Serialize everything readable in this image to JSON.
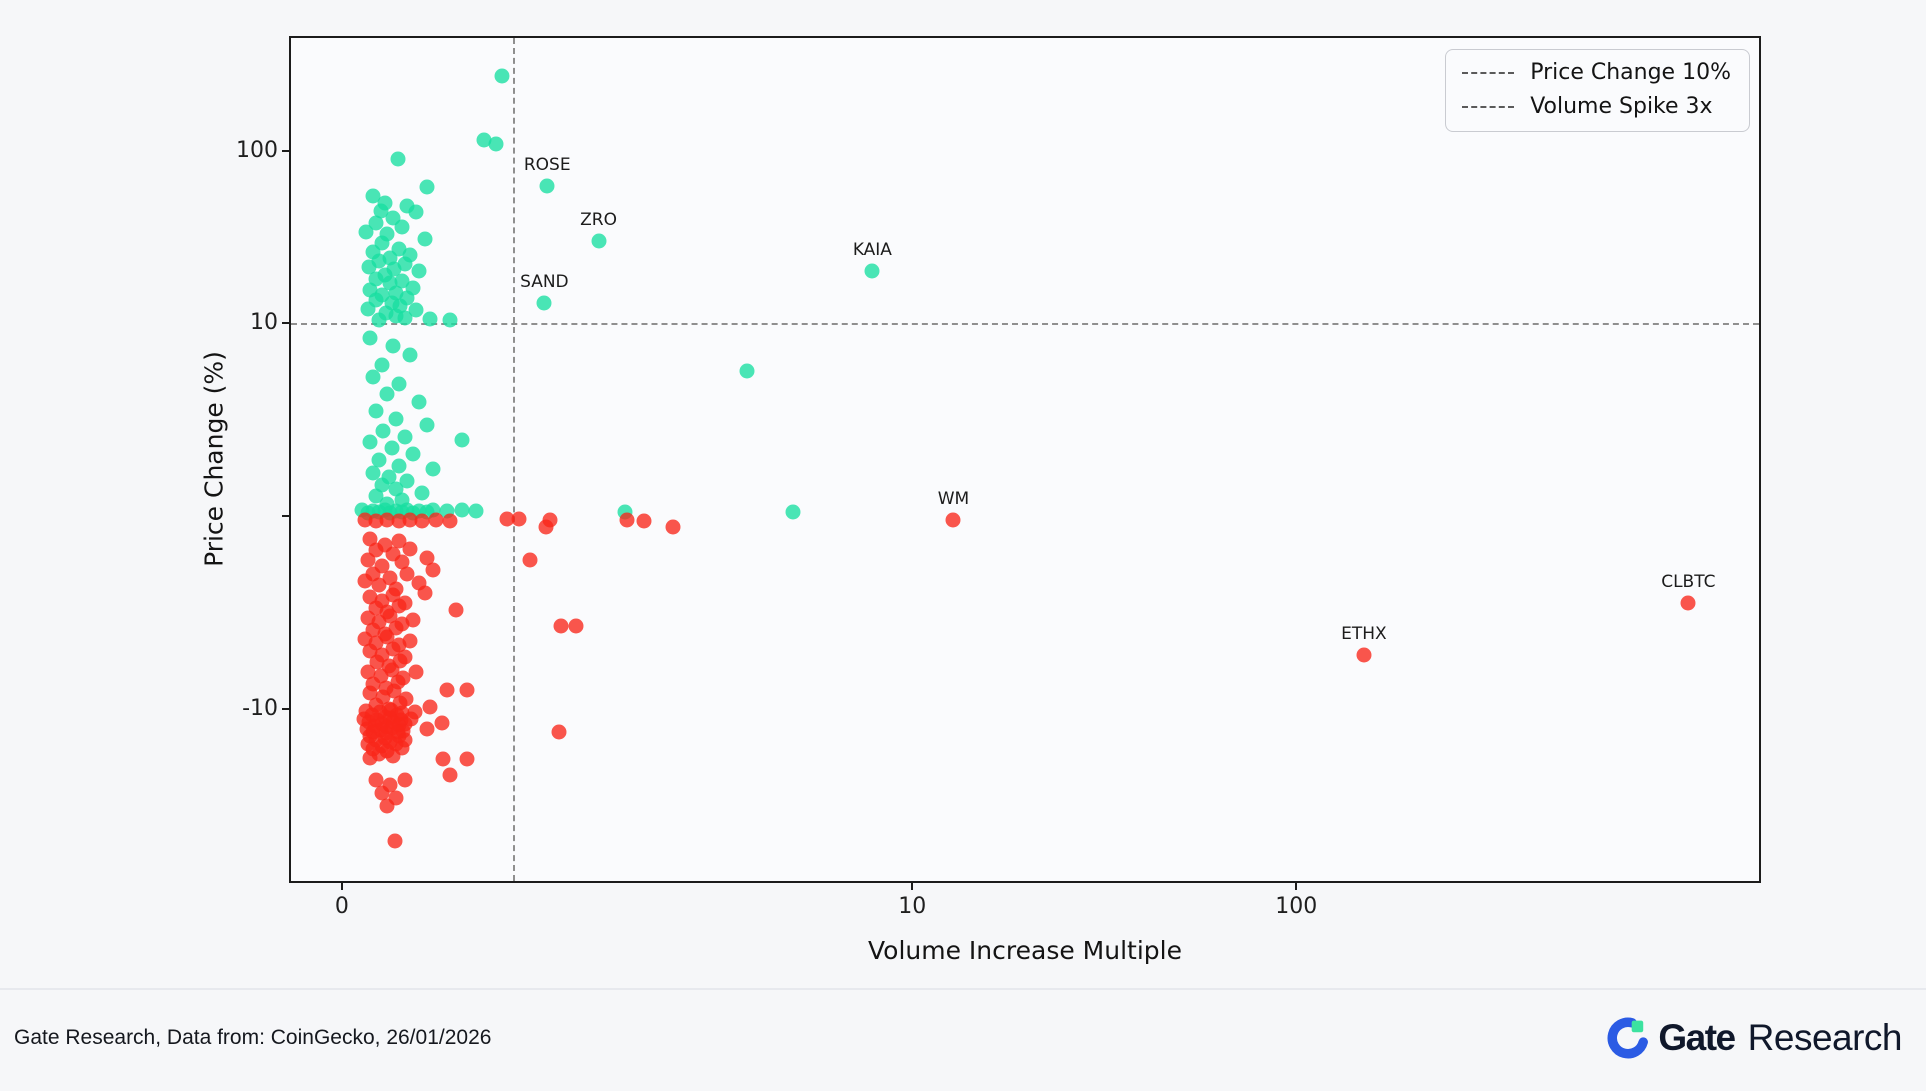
{
  "chart_data": {
    "type": "scatter",
    "title": "",
    "xlabel": "Volume Increase Multiple",
    "ylabel": "Price Change (%)",
    "x_scale": "symlog",
    "y_scale": "symlog",
    "x_ticks": [
      {
        "v": 0,
        "label": "0"
      },
      {
        "v": 10,
        "label": "10"
      },
      {
        "v": 100,
        "label": "100"
      }
    ],
    "y_ticks": [
      {
        "v": 100,
        "label": "100"
      },
      {
        "v": 10,
        "label": "10"
      },
      {
        "v": 0,
        "label": ""
      },
      {
        "v": -10,
        "label": "-10"
      }
    ],
    "legend_position": "upper right",
    "colors": {
      "positive": "#17dfa0",
      "negative": "#f8261a"
    },
    "reference_lines": [
      {
        "axis": "y",
        "value": 10,
        "label": "Price Change 10%"
      },
      {
        "axis": "x",
        "value": 3,
        "label": "Volume Spike 3x"
      }
    ],
    "labeled_points": [
      {
        "label": "ROSE",
        "x": 3.6,
        "y": 63,
        "c": "g"
      },
      {
        "label": "ZRO",
        "x": 4.5,
        "y": 30,
        "c": "g"
      },
      {
        "label": "SAND",
        "x": 3.55,
        "y": 13,
        "c": "g"
      },
      {
        "label": "KAIA",
        "x": 9.3,
        "y": 20,
        "c": "g"
      },
      {
        "label": "WM",
        "x": 12.8,
        "y": -0.2,
        "c": "r"
      },
      {
        "label": "ETHX",
        "x": 150,
        "y": -7.2,
        "c": "r"
      },
      {
        "label": "CLBTC",
        "x": 1050,
        "y": -4.5,
        "c": "r"
      }
    ],
    "points": [
      [
        2.8,
        276,
        "g"
      ],
      [
        2.5,
        117,
        "g"
      ],
      [
        2.7,
        110,
        "g"
      ],
      [
        0.98,
        90,
        "g"
      ],
      [
        1.5,
        62,
        "g"
      ],
      [
        0.55,
        55,
        "g"
      ],
      [
        0.75,
        50,
        "g"
      ],
      [
        1.15,
        48,
        "g"
      ],
      [
        0.68,
        45,
        "g"
      ],
      [
        1.3,
        44,
        "g"
      ],
      [
        0.9,
        41,
        "g"
      ],
      [
        0.6,
        38,
        "g"
      ],
      [
        1.05,
        36,
        "g"
      ],
      [
        0.42,
        34,
        "g"
      ],
      [
        0.8,
        33,
        "g"
      ],
      [
        1.45,
        31,
        "g"
      ],
      [
        0.7,
        29,
        "g"
      ],
      [
        1.0,
        27,
        "g"
      ],
      [
        0.55,
        26,
        "g"
      ],
      [
        1.2,
        25,
        "g"
      ],
      [
        0.85,
        24,
        "g"
      ],
      [
        0.65,
        23,
        "g"
      ],
      [
        1.1,
        22,
        "g"
      ],
      [
        0.48,
        21,
        "g"
      ],
      [
        0.92,
        20.5,
        "g"
      ],
      [
        1.35,
        20,
        "g"
      ],
      [
        0.75,
        19,
        "g"
      ],
      [
        0.6,
        18,
        "g"
      ],
      [
        1.05,
        17.5,
        "g"
      ],
      [
        0.85,
        17,
        "g"
      ],
      [
        1.25,
        16,
        "g"
      ],
      [
        0.5,
        15.5,
        "g"
      ],
      [
        0.95,
        15,
        "g"
      ],
      [
        0.7,
        14.5,
        "g"
      ],
      [
        1.15,
        14,
        "g"
      ],
      [
        0.6,
        13.5,
        "g"
      ],
      [
        0.88,
        13,
        "g"
      ],
      [
        1.02,
        12.5,
        "g"
      ],
      [
        0.45,
        12,
        "g"
      ],
      [
        1.3,
        11.8,
        "g"
      ],
      [
        0.78,
        11.4,
        "g"
      ],
      [
        0.95,
        11,
        "g"
      ],
      [
        1.1,
        10.7,
        "g"
      ],
      [
        0.65,
        10.4,
        "g"
      ],
      [
        1.55,
        10.5,
        "g"
      ],
      [
        1.9,
        10.3,
        "g"
      ],
      [
        0.5,
        9.2,
        "g"
      ],
      [
        0.9,
        8.8,
        "g"
      ],
      [
        1.2,
        8.3,
        "g"
      ],
      [
        0.7,
        7.8,
        "g"
      ],
      [
        7.1,
        7.5,
        "g"
      ],
      [
        0.55,
        7.2,
        "g"
      ],
      [
        1.0,
        6.8,
        "g"
      ],
      [
        0.8,
        6.3,
        "g"
      ],
      [
        1.35,
        5.9,
        "g"
      ],
      [
        0.6,
        5.4,
        "g"
      ],
      [
        0.95,
        5.0,
        "g"
      ],
      [
        1.5,
        4.7,
        "g"
      ],
      [
        2.1,
        3.9,
        "g"
      ],
      [
        0.72,
        4.4,
        "g"
      ],
      [
        1.1,
        4.1,
        "g"
      ],
      [
        0.5,
        3.8,
        "g"
      ],
      [
        0.88,
        3.5,
        "g"
      ],
      [
        1.25,
        3.2,
        "g"
      ],
      [
        0.65,
        2.9,
        "g"
      ],
      [
        1.0,
        2.6,
        "g"
      ],
      [
        1.6,
        2.4,
        "g"
      ],
      [
        0.55,
        2.2,
        "g"
      ],
      [
        0.82,
        2.0,
        "g"
      ],
      [
        1.15,
        1.8,
        "g"
      ],
      [
        0.7,
        1.6,
        "g"
      ],
      [
        0.95,
        1.4,
        "g"
      ],
      [
        1.4,
        1.2,
        "g"
      ],
      [
        0.6,
        1.0,
        "g"
      ],
      [
        1.05,
        0.8,
        "g"
      ],
      [
        0.8,
        0.6,
        "g"
      ],
      [
        0.35,
        0.3,
        "g"
      ],
      [
        0.55,
        0.25,
        "g"
      ],
      [
        0.75,
        0.3,
        "g"
      ],
      [
        0.95,
        0.25,
        "g"
      ],
      [
        1.15,
        0.3,
        "g"
      ],
      [
        1.35,
        0.25,
        "g"
      ],
      [
        1.6,
        0.3,
        "g"
      ],
      [
        1.85,
        0.25,
        "g"
      ],
      [
        2.1,
        0.3,
        "g"
      ],
      [
        2.35,
        0.25,
        "g"
      ],
      [
        0.45,
        0.15,
        "g"
      ],
      [
        0.65,
        0.2,
        "g"
      ],
      [
        0.85,
        0.15,
        "g"
      ],
      [
        1.05,
        0.2,
        "g"
      ],
      [
        1.25,
        0.15,
        "g"
      ],
      [
        1.5,
        0.2,
        "g"
      ],
      [
        4.97,
        0.2,
        "g"
      ],
      [
        7.9,
        0.2,
        "g"
      ],
      [
        0.4,
        -0.2,
        "r"
      ],
      [
        0.6,
        -0.25,
        "r"
      ],
      [
        0.8,
        -0.2,
        "r"
      ],
      [
        1.0,
        -0.25,
        "r"
      ],
      [
        1.2,
        -0.2,
        "r"
      ],
      [
        1.4,
        -0.25,
        "r"
      ],
      [
        1.65,
        -0.2,
        "r"
      ],
      [
        1.9,
        -0.25,
        "r"
      ],
      [
        2.9,
        -0.15,
        "r"
      ],
      [
        3.1,
        -0.15,
        "r"
      ],
      [
        3.65,
        -0.2,
        "r"
      ],
      [
        5.0,
        -0.2,
        "r"
      ],
      [
        5.3,
        -0.25,
        "r"
      ],
      [
        5.8,
        -0.6,
        "r"
      ],
      [
        3.58,
        -0.6,
        "r"
      ],
      [
        0.5,
        -1.2,
        "r"
      ],
      [
        0.75,
        -1.5,
        "r"
      ],
      [
        1.0,
        -1.3,
        "r"
      ],
      [
        0.6,
        -1.8,
        "r"
      ],
      [
        0.9,
        -2.0,
        "r"
      ],
      [
        1.2,
        -1.7,
        "r"
      ],
      [
        0.45,
        -2.3,
        "r"
      ],
      [
        0.7,
        -2.6,
        "r"
      ],
      [
        1.05,
        -2.4,
        "r"
      ],
      [
        1.5,
        -2.2,
        "r"
      ],
      [
        3.3,
        -2.3,
        "r"
      ],
      [
        0.55,
        -3.0,
        "r"
      ],
      [
        0.85,
        -3.2,
        "r"
      ],
      [
        1.15,
        -3.0,
        "r"
      ],
      [
        0.65,
        -3.6,
        "r"
      ],
      [
        0.95,
        -3.8,
        "r"
      ],
      [
        1.35,
        -3.5,
        "r"
      ],
      [
        1.6,
        -2.8,
        "r"
      ],
      [
        0.4,
        -3.4,
        "r"
      ],
      [
        1.45,
        -4.0,
        "r"
      ],
      [
        0.5,
        -4.2,
        "r"
      ],
      [
        0.7,
        -4.4,
        "r"
      ],
      [
        0.9,
        -4.1,
        "r"
      ],
      [
        1.1,
        -4.5,
        "r"
      ],
      [
        0.6,
        -4.8,
        "r"
      ],
      [
        0.8,
        -5.0,
        "r"
      ],
      [
        1.0,
        -4.7,
        "r"
      ],
      [
        0.45,
        -5.3,
        "r"
      ],
      [
        0.65,
        -5.5,
        "r"
      ],
      [
        0.85,
        -5.2,
        "r"
      ],
      [
        1.05,
        -5.6,
        "r"
      ],
      [
        1.25,
        -5.4,
        "r"
      ],
      [
        0.55,
        -5.9,
        "r"
      ],
      [
        0.75,
        -6.1,
        "r"
      ],
      [
        0.95,
        -5.8,
        "r"
      ],
      [
        0.4,
        -6.4,
        "r"
      ],
      [
        0.6,
        -6.6,
        "r"
      ],
      [
        0.8,
        -6.3,
        "r"
      ],
      [
        1.0,
        -6.7,
        "r"
      ],
      [
        1.2,
        -6.5,
        "r"
      ],
      [
        0.5,
        -7.0,
        "r"
      ],
      [
        0.7,
        -7.2,
        "r"
      ],
      [
        0.9,
        -6.9,
        "r"
      ],
      [
        1.1,
        -7.3,
        "r"
      ],
      [
        0.62,
        -7.6,
        "r"
      ],
      [
        0.82,
        -7.8,
        "r"
      ],
      [
        1.02,
        -7.5,
        "r"
      ],
      [
        0.45,
        -8.1,
        "r"
      ],
      [
        0.68,
        -8.3,
        "r"
      ],
      [
        0.88,
        -8.0,
        "r"
      ],
      [
        1.08,
        -8.4,
        "r"
      ],
      [
        1.3,
        -8.1,
        "r"
      ],
      [
        0.55,
        -8.7,
        "r"
      ],
      [
        0.78,
        -8.9,
        "r"
      ],
      [
        0.98,
        -8.6,
        "r"
      ],
      [
        3.85,
        -5.7,
        "r"
      ],
      [
        4.1,
        -5.7,
        "r"
      ],
      [
        2.0,
        -4.9,
        "r"
      ],
      [
        0.5,
        -9.2,
        "r"
      ],
      [
        0.72,
        -9.4,
        "r"
      ],
      [
        0.92,
        -9.1,
        "r"
      ],
      [
        1.12,
        -9.5,
        "r"
      ],
      [
        0.6,
        -9.8,
        "r"
      ],
      [
        0.82,
        -10.0,
        "r"
      ],
      [
        1.02,
        -9.7,
        "r"
      ],
      [
        0.42,
        -10.3,
        "r"
      ],
      [
        0.66,
        -10.5,
        "r"
      ],
      [
        0.86,
        -10.2,
        "r"
      ],
      [
        1.06,
        -10.6,
        "r"
      ],
      [
        1.28,
        -10.4,
        "r"
      ],
      [
        0.52,
        -10.9,
        "r"
      ],
      [
        0.76,
        -11.1,
        "r"
      ],
      [
        0.96,
        -10.8,
        "r"
      ],
      [
        0.38,
        -11.4,
        "r"
      ],
      [
        0.62,
        -11.6,
        "r"
      ],
      [
        0.84,
        -11.3,
        "r"
      ],
      [
        1.04,
        -11.7,
        "r"
      ],
      [
        1.22,
        -11.5,
        "r"
      ],
      [
        0.48,
        -12.0,
        "r"
      ],
      [
        0.7,
        -12.2,
        "r"
      ],
      [
        0.9,
        -11.9,
        "r"
      ],
      [
        1.1,
        -12.3,
        "r"
      ],
      [
        0.58,
        -12.6,
        "r"
      ],
      [
        0.8,
        -12.8,
        "r"
      ],
      [
        1.0,
        -12.5,
        "r"
      ],
      [
        0.44,
        -13.1,
        "r"
      ],
      [
        0.68,
        -13.3,
        "r"
      ],
      [
        0.88,
        -13.0,
        "r"
      ],
      [
        1.08,
        -13.4,
        "r"
      ],
      [
        0.54,
        -13.7,
        "r"
      ],
      [
        0.78,
        -13.9,
        "r"
      ],
      [
        0.98,
        -13.6,
        "r"
      ],
      [
        1.55,
        -9.9,
        "r"
      ],
      [
        1.84,
        -9.0,
        "r"
      ],
      [
        2.19,
        -9.0,
        "r"
      ],
      [
        1.75,
        -12.1,
        "r"
      ],
      [
        0.5,
        -14.5,
        "r"
      ],
      [
        0.75,
        -14.8,
        "r"
      ],
      [
        1.0,
        -14.4,
        "r"
      ],
      [
        0.6,
        -15.3,
        "r"
      ],
      [
        0.85,
        -15.6,
        "r"
      ],
      [
        1.1,
        -15.2,
        "r"
      ],
      [
        0.45,
        -16.1,
        "r"
      ],
      [
        0.7,
        -16.5,
        "r"
      ],
      [
        0.95,
        -16.0,
        "r"
      ],
      [
        0.55,
        -17.2,
        "r"
      ],
      [
        0.8,
        -17.6,
        "r"
      ],
      [
        1.05,
        -17.0,
        "r"
      ],
      [
        0.65,
        -18.3,
        "r"
      ],
      [
        0.9,
        -18.8,
        "r"
      ],
      [
        1.77,
        -19.6,
        "r"
      ],
      [
        2.2,
        -19.6,
        "r"
      ],
      [
        0.5,
        -19.3,
        "r"
      ],
      [
        1.5,
        -13.2,
        "r"
      ],
      [
        1.9,
        -24.5,
        "r"
      ],
      [
        0.93,
        -59,
        "r"
      ],
      [
        0.79,
        -37,
        "r"
      ],
      [
        0.6,
        -26,
        "r"
      ],
      [
        0.85,
        -28,
        "r"
      ],
      [
        1.1,
        -26,
        "r"
      ],
      [
        0.7,
        -31,
        "r"
      ],
      [
        0.95,
        -33,
        "r"
      ],
      [
        3.8,
        -13.6,
        "r"
      ]
    ]
  },
  "footer": {
    "source_text": "Gate Research, Data from: CoinGecko, 26/01/2026",
    "brand_bold": "Gate",
    "brand_regular": "Research"
  }
}
